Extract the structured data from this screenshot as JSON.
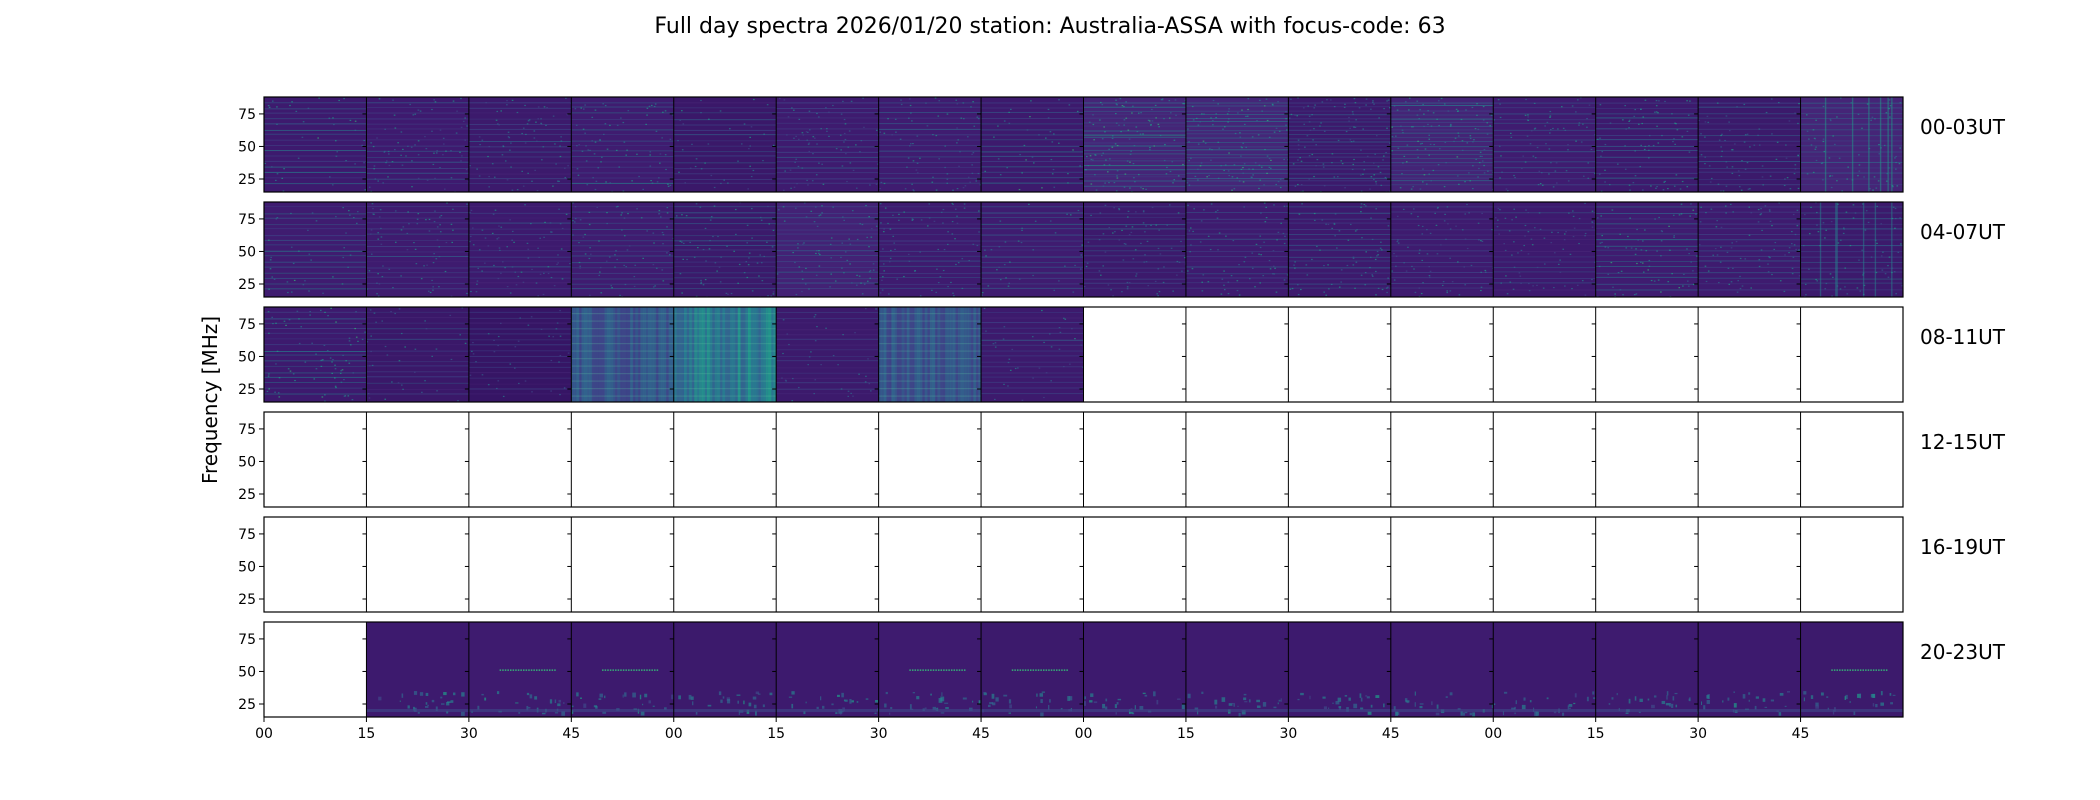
{
  "chart_data": {
    "type": "heatmap",
    "title": "Full day spectra 2026/01/20 station: Australia-ASSA with focus-code: 63",
    "ylabel": "Frequency [MHz]",
    "xlabel": "",
    "y_unit": "MHz",
    "ylim": [
      15,
      88
    ],
    "yticks": [
      "25",
      "50",
      "75"
    ],
    "ytick_values": [
      25,
      50,
      75
    ],
    "xticks": [
      "00",
      "15",
      "30",
      "45",
      "00",
      "15",
      "30",
      "45",
      "00",
      "15",
      "30",
      "45",
      "00",
      "15",
      "30",
      "45"
    ],
    "panels_per_row": 16,
    "panel_minutes": 15,
    "colormap": "viridis",
    "rows": [
      {
        "label": "00-03UT",
        "panels": [
          {
            "has_data": true,
            "base": "#3d1a6e",
            "texture": "hlines",
            "intensity": 0.5
          },
          {
            "has_data": true,
            "base": "#3e1a6f",
            "texture": "dots",
            "intensity": 0.35
          },
          {
            "has_data": true,
            "base": "#3c1a6c",
            "texture": "dots",
            "intensity": 0.3
          },
          {
            "has_data": true,
            "base": "#3f1c70",
            "texture": "dots",
            "intensity": 0.45
          },
          {
            "has_data": true,
            "base": "#3a1869",
            "texture": "hlines",
            "intensity": 0.35
          },
          {
            "has_data": true,
            "base": "#3e1b6f",
            "texture": "dots",
            "intensity": 0.3
          },
          {
            "has_data": true,
            "base": "#3f1c70",
            "texture": "dots",
            "intensity": 0.4
          },
          {
            "has_data": true,
            "base": "#3d1a6d",
            "texture": "hlines",
            "intensity": 0.55
          },
          {
            "has_data": true,
            "base": "#452577",
            "texture": "dense",
            "intensity": 0.6
          },
          {
            "has_data": true,
            "base": "#452678",
            "texture": "dense",
            "intensity": 0.55
          },
          {
            "has_data": true,
            "base": "#3c1a6c",
            "texture": "dense",
            "intensity": 0.4
          },
          {
            "has_data": true,
            "base": "#442476",
            "texture": "dense",
            "intensity": 0.5
          },
          {
            "has_data": true,
            "base": "#3f1c70",
            "texture": "dots",
            "intensity": 0.4
          },
          {
            "has_data": true,
            "base": "#3d1a6d",
            "texture": "dots",
            "intensity": 0.45
          },
          {
            "has_data": true,
            "base": "#3b1a6b",
            "texture": "dots",
            "intensity": 0.35
          },
          {
            "has_data": true,
            "base": "#452577",
            "texture": "vlines",
            "intensity": 0.5
          }
        ]
      },
      {
        "label": "04-07UT",
        "panels": [
          {
            "has_data": true,
            "base": "#3f1c70",
            "texture": "hlines",
            "intensity": 0.5
          },
          {
            "has_data": true,
            "base": "#3e1b6f",
            "texture": "dots",
            "intensity": 0.35
          },
          {
            "has_data": true,
            "base": "#3d1a6e",
            "texture": "dots",
            "intensity": 0.3
          },
          {
            "has_data": true,
            "base": "#3f1c70",
            "texture": "dots",
            "intensity": 0.4
          },
          {
            "has_data": true,
            "base": "#3b1a6b",
            "texture": "dots",
            "intensity": 0.45
          },
          {
            "has_data": true,
            "base": "#432275",
            "texture": "dots",
            "intensity": 0.45
          },
          {
            "has_data": true,
            "base": "#3e1b6f",
            "texture": "dots",
            "intensity": 0.4
          },
          {
            "has_data": true,
            "base": "#3f1c70",
            "texture": "hlines",
            "intensity": 0.45
          },
          {
            "has_data": true,
            "base": "#3c1a6c",
            "texture": "dots",
            "intensity": 0.35
          },
          {
            "has_data": true,
            "base": "#3e1b6f",
            "texture": "dots",
            "intensity": 0.4
          },
          {
            "has_data": true,
            "base": "#3d1a6d",
            "texture": "dots",
            "intensity": 0.45
          },
          {
            "has_data": true,
            "base": "#3e1b6f",
            "texture": "dots",
            "intensity": 0.3
          },
          {
            "has_data": true,
            "base": "#3d1a6e",
            "texture": "dots",
            "intensity": 0.3
          },
          {
            "has_data": true,
            "base": "#3f1c70",
            "texture": "dots",
            "intensity": 0.55
          },
          {
            "has_data": true,
            "base": "#3e1b6f",
            "texture": "dots",
            "intensity": 0.4
          },
          {
            "has_data": true,
            "base": "#3c1a6c",
            "texture": "vlines",
            "intensity": 0.45
          }
        ]
      },
      {
        "label": "08-11UT",
        "panels": [
          {
            "has_data": true,
            "base": "#3d1a6e",
            "texture": "dots",
            "intensity": 0.55
          },
          {
            "has_data": true,
            "base": "#3a1869",
            "texture": "hlines",
            "intensity": 0.3
          },
          {
            "has_data": true,
            "base": "#361565",
            "texture": "hlines",
            "intensity": 0.25
          },
          {
            "has_data": true,
            "base": "#3b3a86",
            "texture": "smooth",
            "intensity": 0.4
          },
          {
            "has_data": true,
            "base": "#345d94",
            "texture": "smooth",
            "intensity": 0.6
          },
          {
            "has_data": true,
            "base": "#3c1a6c",
            "texture": "hlines",
            "intensity": 0.25
          },
          {
            "has_data": true,
            "base": "#3d3a84",
            "texture": "smooth",
            "intensity": 0.4
          },
          {
            "has_data": true,
            "base": "#3d1a6d",
            "texture": "hlines",
            "intensity": 0.3
          },
          {
            "has_data": false
          },
          {
            "has_data": false
          },
          {
            "has_data": false
          },
          {
            "has_data": false
          },
          {
            "has_data": false
          },
          {
            "has_data": false
          },
          {
            "has_data": false
          },
          {
            "has_data": false
          }
        ]
      },
      {
        "label": "12-15UT",
        "panels": [
          {
            "has_data": false
          },
          {
            "has_data": false
          },
          {
            "has_data": false
          },
          {
            "has_data": false
          },
          {
            "has_data": false
          },
          {
            "has_data": false
          },
          {
            "has_data": false
          },
          {
            "has_data": false
          },
          {
            "has_data": false
          },
          {
            "has_data": false
          },
          {
            "has_data": false
          },
          {
            "has_data": false
          },
          {
            "has_data": false
          },
          {
            "has_data": false
          },
          {
            "has_data": false
          },
          {
            "has_data": false
          }
        ]
      },
      {
        "label": "16-19UT",
        "panels": [
          {
            "has_data": false
          },
          {
            "has_data": false
          },
          {
            "has_data": false
          },
          {
            "has_data": false
          },
          {
            "has_data": false
          },
          {
            "has_data": false
          },
          {
            "has_data": false
          },
          {
            "has_data": false
          },
          {
            "has_data": false
          },
          {
            "has_data": false
          },
          {
            "has_data": false
          },
          {
            "has_data": false
          },
          {
            "has_data": false
          },
          {
            "has_data": false
          },
          {
            "has_data": false
          },
          {
            "has_data": false
          }
        ]
      },
      {
        "label": "20-23UT",
        "panels": [
          {
            "has_data": false
          },
          {
            "has_data": true,
            "base": "#3d1a6e",
            "texture": "quiet",
            "intensity": 0.3
          },
          {
            "has_data": true,
            "base": "#3e1b6f",
            "texture": "quiet",
            "intensity": 0.35,
            "band_mhz": 51
          },
          {
            "has_data": true,
            "base": "#3d1a6e",
            "texture": "quiet",
            "intensity": 0.3,
            "band_mhz": 51
          },
          {
            "has_data": true,
            "base": "#3c1a6c",
            "texture": "quiet",
            "intensity": 0.35
          },
          {
            "has_data": true,
            "base": "#3d1a6e",
            "texture": "quiet",
            "intensity": 0.35
          },
          {
            "has_data": true,
            "base": "#3e1b6f",
            "texture": "quiet",
            "intensity": 0.35,
            "band_mhz": 51
          },
          {
            "has_data": true,
            "base": "#3c1a6c",
            "texture": "quiet",
            "intensity": 0.35,
            "band_mhz": 51
          },
          {
            "has_data": true,
            "base": "#3d1a6e",
            "texture": "quiet",
            "intensity": 0.4
          },
          {
            "has_data": true,
            "base": "#3e1b6f",
            "texture": "quiet",
            "intensity": 0.35
          },
          {
            "has_data": true,
            "base": "#3d1a6e",
            "texture": "quiet",
            "intensity": 0.35
          },
          {
            "has_data": true,
            "base": "#3e1b6f",
            "texture": "quiet",
            "intensity": 0.35
          },
          {
            "has_data": true,
            "base": "#3d1a6e",
            "texture": "quiet",
            "intensity": 0.4
          },
          {
            "has_data": true,
            "base": "#3e1b6f",
            "texture": "quiet",
            "intensity": 0.4
          },
          {
            "has_data": true,
            "base": "#3d1a6e",
            "texture": "quiet",
            "intensity": 0.35
          },
          {
            "has_data": true,
            "base": "#3c1a6c",
            "texture": "quiet",
            "intensity": 0.4,
            "band_mhz": 51
          }
        ]
      }
    ]
  }
}
